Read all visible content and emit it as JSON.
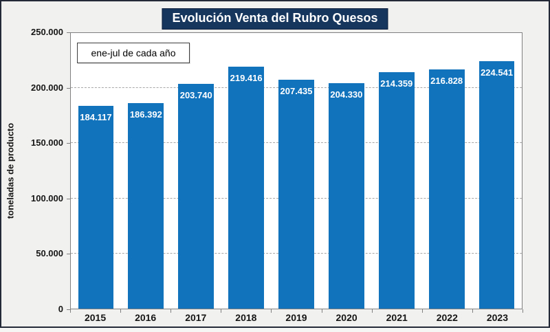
{
  "title": "Evolución Venta del Rubro Quesos",
  "legend_label": "ene-jul de cada año",
  "colors": {
    "bar": "#1273bd",
    "title_background": "#17365d",
    "title_text": "#ffffff",
    "gridline": "#a6a6a6",
    "axis_line": "#7f7f7f",
    "frame_border": "#232936",
    "page_background": "#f1f1ef",
    "plot_background": "#ffffff",
    "bar_label_text": "#ffffff"
  },
  "chart_data": {
    "type": "bar",
    "title": "Evolución Venta del Rubro Quesos",
    "categories": [
      "2015",
      "2016",
      "2017",
      "2018",
      "2019",
      "2020",
      "2021",
      "2022",
      "2023"
    ],
    "values": [
      184117,
      186392,
      203740,
      219416,
      207435,
      204330,
      214359,
      216828,
      224541
    ],
    "value_labels": [
      "184.117",
      "186.392",
      "203.740",
      "219.416",
      "207.435",
      "204.330",
      "214.359",
      "216.828",
      "224.541"
    ],
    "xlabel": "",
    "ylabel": "toneladas de producto",
    "ylim": [
      0,
      250000
    ],
    "yticks": [
      0,
      50000,
      100000,
      150000,
      200000,
      250000
    ],
    "ytick_labels": [
      "0",
      "50.000",
      "100.000",
      "150.000",
      "200.000",
      "250.000"
    ],
    "legend_entries": [
      "ene-jul de cada año"
    ],
    "legend_position": "top-left inside plot",
    "grid": "horizontal dashed",
    "data_label_position": "inside end"
  }
}
